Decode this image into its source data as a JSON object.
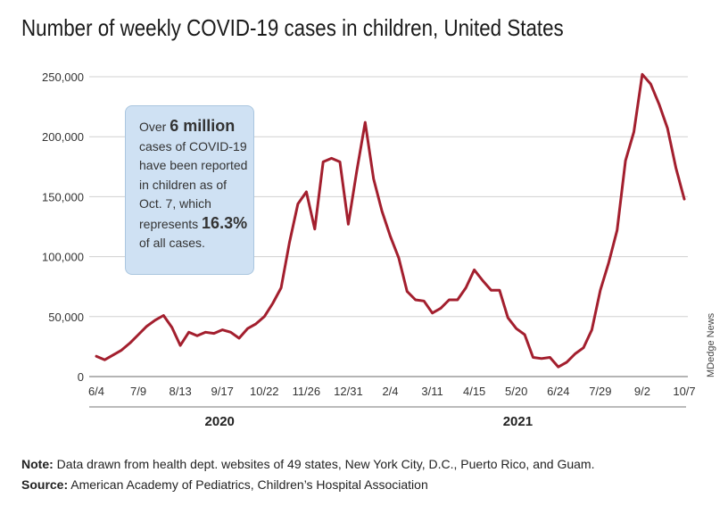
{
  "title": "Number of weekly COVID-19 cases in children, United States",
  "callout": {
    "l1a": "Over ",
    "l1b": "6 million",
    "l2": "cases of COVID-19",
    "l3": "have been reported",
    "l4": "in children as of",
    "l5": "Oct. 7, which",
    "l6a": "represents ",
    "l6b": "16.3%",
    "l7": "of all cases."
  },
  "credit": "MDedge News",
  "note": {
    "label": "Note:",
    "text": " Data drawn from health dept. websites of 49 states, New York City, D.C., Puerto Rico, and Guam."
  },
  "source": {
    "label": "Source:",
    "text": " American Academy of Pediatrics, Children’s Hospital Association"
  },
  "colors": {
    "line": "#a31f2e",
    "grid": "#d0d0d0",
    "callout_fill": "#cfe1f3"
  },
  "chart_data": {
    "type": "line",
    "title": "Number of weekly COVID-19 cases in children, United States",
    "xlabel": "",
    "ylabel": "",
    "ylim": [
      0,
      250000
    ],
    "yticks": [
      0,
      50000,
      100000,
      150000,
      200000,
      250000
    ],
    "ytick_labels": [
      "0",
      "50,000",
      "100,000",
      "150,000",
      "200,000",
      "250,000"
    ],
    "xtick_labels": [
      "6/4",
      "7/9",
      "8/13",
      "9/17",
      "10/22",
      "11/26",
      "12/31",
      "2/4",
      "3/11",
      "4/15",
      "5/20",
      "6/24",
      "7/29",
      "9/2",
      "10/7"
    ],
    "year_groups": [
      {
        "label": "2020",
        "from_week": 0,
        "to_week": 30
      },
      {
        "label": "2021",
        "from_week": 31,
        "to_week": 70
      }
    ],
    "grid": true,
    "series": [
      {
        "values": [
          17000,
          14000,
          18000,
          22000,
          28000,
          35000,
          42000,
          47000,
          51000,
          41000,
          26000,
          37000,
          34000,
          37000,
          36000,
          39000,
          37000,
          32000,
          40000,
          44000,
          50000,
          61000,
          74000,
          112000,
          144000,
          154000,
          123000,
          179000,
          182000,
          179000,
          127000,
          171000,
          212000,
          165000,
          138000,
          117000,
          99000,
          71000,
          64000,
          63000,
          53000,
          57000,
          64000,
          64000,
          74000,
          89000,
          80000,
          72000,
          72000,
          49000,
          40000,
          35000,
          16000,
          15000,
          16000,
          8000,
          12000,
          19000,
          24000,
          39000,
          72000,
          95000,
          122000,
          180000,
          204000,
          252000,
          244000,
          227000,
          207000,
          174000,
          148000
        ]
      }
    ]
  }
}
